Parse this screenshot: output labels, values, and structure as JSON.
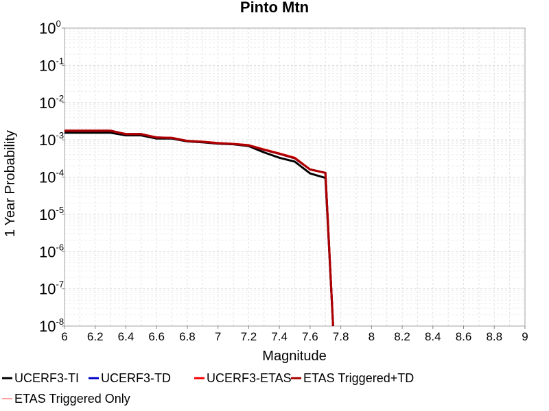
{
  "chart_data": {
    "type": "line",
    "title": "Pinto Mtn",
    "xlabel": "Magnitude",
    "ylabel": "1 Year Probability",
    "xlim": [
      6,
      9
    ],
    "ylim": [
      1e-08,
      1
    ],
    "yscale": "log",
    "grid": true,
    "legend_position": "bottom",
    "x_ticks": [
      "6",
      "6.2",
      "6.4",
      "6.6",
      "6.8",
      "7",
      "7.2",
      "7.4",
      "7.6",
      "7.8",
      "8",
      "8.2",
      "8.4",
      "8.6",
      "8.8",
      "9"
    ],
    "y_ticks": [
      {
        "base": "10",
        "exp": "0",
        "value": 1
      },
      {
        "base": "10",
        "exp": "-1",
        "value": 0.1
      },
      {
        "base": "10",
        "exp": "-2",
        "value": 0.01
      },
      {
        "base": "10",
        "exp": "-3",
        "value": 0.001
      },
      {
        "base": "10",
        "exp": "-4",
        "value": 0.0001
      },
      {
        "base": "10",
        "exp": "-5",
        "value": 1e-05
      },
      {
        "base": "10",
        "exp": "-6",
        "value": 1e-06
      },
      {
        "base": "10",
        "exp": "-7",
        "value": 1e-07
      },
      {
        "base": "10",
        "exp": "-8",
        "value": 1e-08
      }
    ],
    "series": [
      {
        "name": "UCERF3-TI",
        "color": "#000000",
        "x": [
          6.0,
          6.1,
          6.2,
          6.3,
          6.4,
          6.5,
          6.6,
          6.7,
          6.8,
          6.9,
          7.0,
          7.1,
          7.2,
          7.3,
          7.4,
          7.5,
          7.6,
          7.7,
          7.75
        ],
        "y": [
          0.00155,
          0.00155,
          0.00155,
          0.00155,
          0.00132,
          0.00132,
          0.00108,
          0.00108,
          0.00091,
          0.00086,
          0.00079,
          0.00076,
          0.00068,
          0.00046,
          0.00033,
          0.00026,
          0.000125,
          9.5e-05,
          1e-08
        ]
      },
      {
        "name": "UCERF3-TD",
        "color": "#0000cc",
        "x": [
          6.0,
          6.1,
          6.2,
          6.3,
          6.4,
          6.5,
          6.6,
          6.7,
          6.8,
          6.9,
          7.0,
          7.1,
          7.2,
          7.3,
          7.4,
          7.5,
          7.6,
          7.7,
          7.75
        ],
        "y": [
          0.00175,
          0.00175,
          0.00175,
          0.00175,
          0.00142,
          0.00142,
          0.00115,
          0.00112,
          0.00093,
          0.00088,
          0.00081,
          0.00077,
          0.00071,
          0.00054,
          0.00042,
          0.00032,
          0.00016,
          0.00013,
          1e-08
        ]
      },
      {
        "name": "UCERF3-ETAS",
        "color": "#ff0000",
        "x": [
          6.0,
          6.1,
          6.2,
          6.3,
          6.4,
          6.5,
          6.6,
          6.7,
          6.8,
          6.9,
          7.0,
          7.1,
          7.2,
          7.3,
          7.4,
          7.5,
          7.6,
          7.7,
          7.75
        ],
        "y": [
          0.00176,
          0.00176,
          0.00176,
          0.00176,
          0.00143,
          0.00143,
          0.00116,
          0.00113,
          0.00094,
          0.00089,
          0.00082,
          0.00078,
          0.00072,
          0.00055,
          0.00043,
          0.00033,
          0.00016,
          0.00013,
          1e-08
        ]
      },
      {
        "name": "ETAS Triggered+TD",
        "color": "#aa0000",
        "x": [
          6.0,
          6.1,
          6.2,
          6.3,
          6.4,
          6.5,
          6.6,
          6.7,
          6.8,
          6.9,
          7.0,
          7.1,
          7.2,
          7.3,
          7.4,
          7.5,
          7.6,
          7.7,
          7.75
        ],
        "y": [
          0.00175,
          0.00175,
          0.00175,
          0.00175,
          0.00142,
          0.00142,
          0.00115,
          0.00112,
          0.00093,
          0.00088,
          0.00081,
          0.00077,
          0.00071,
          0.00054,
          0.00042,
          0.00032,
          0.00016,
          0.00013,
          1e-08
        ]
      },
      {
        "name": "ETAS Triggered Only",
        "color": "#ff8080",
        "x": [],
        "y": []
      }
    ]
  }
}
